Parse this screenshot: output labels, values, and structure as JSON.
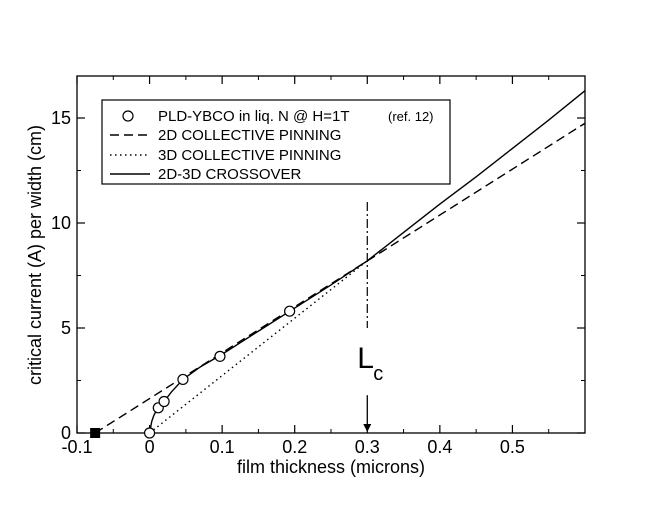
{
  "chart_data": {
    "type": "line",
    "xlabel": "film thickness (microns)",
    "ylabel": "critical current (A) per width (cm)",
    "xlim": [
      -0.1,
      0.6
    ],
    "ylim": [
      0,
      17
    ],
    "x_ticks": [
      -0.1,
      0,
      0.1,
      0.2,
      0.3,
      0.4,
      0.5
    ],
    "x_tick_labels": [
      "-0.1",
      "0",
      "0.1",
      "0.2",
      "0.3",
      "0.4",
      "0.5"
    ],
    "y_ticks": [
      0,
      5,
      10,
      15
    ],
    "y_tick_labels": [
      "0",
      "5",
      "10",
      "15"
    ],
    "grid": false,
    "legend_position": "top-left",
    "series": [
      {
        "name": "PLD-YBCO in liq. N @ H=1T",
        "name_ref": "(ref. 12)",
        "style": "open-circle-markers",
        "x": [
          0.0,
          0.012,
          0.02,
          0.046,
          0.097,
          0.193
        ],
        "y": [
          0.0,
          1.2,
          1.5,
          2.55,
          3.65,
          5.8
        ]
      },
      {
        "name": "2D COLLECTIVE PINNING",
        "style": "dashed",
        "x": [
          -0.075,
          0.6
        ],
        "y": [
          0.0,
          14.75
        ]
      },
      {
        "name": "3D COLLECTIVE PINNING",
        "style": "dotted",
        "x": [
          0.0,
          0.3
        ],
        "y": [
          0.0,
          8.2
        ]
      },
      {
        "name": "2D-3D CROSSOVER",
        "style": "solid",
        "x": [
          0.0,
          0.003,
          0.006,
          0.01,
          0.015,
          0.02,
          0.03,
          0.046,
          0.07,
          0.1,
          0.15,
          0.2,
          0.25,
          0.3,
          0.35,
          0.4,
          0.45,
          0.5,
          0.55,
          0.6
        ],
        "y": [
          0.0,
          0.55,
          0.85,
          1.1,
          1.3,
          1.5,
          1.95,
          2.55,
          3.15,
          3.75,
          4.85,
          5.95,
          7.05,
          8.2,
          9.55,
          10.9,
          12.2,
          13.55,
          14.9,
          16.3
        ]
      }
    ],
    "annotations": {
      "crossover_label_main": "L",
      "crossover_label_sub": "c",
      "crossover_x": 0.3,
      "crossover_y": 8.2,
      "vertical_line_y_range": [
        5.0,
        11.0
      ],
      "arrow_y_range": [
        1.8,
        0.0
      ],
      "marker_x": -0.075,
      "marker_y": 0.0
    }
  }
}
